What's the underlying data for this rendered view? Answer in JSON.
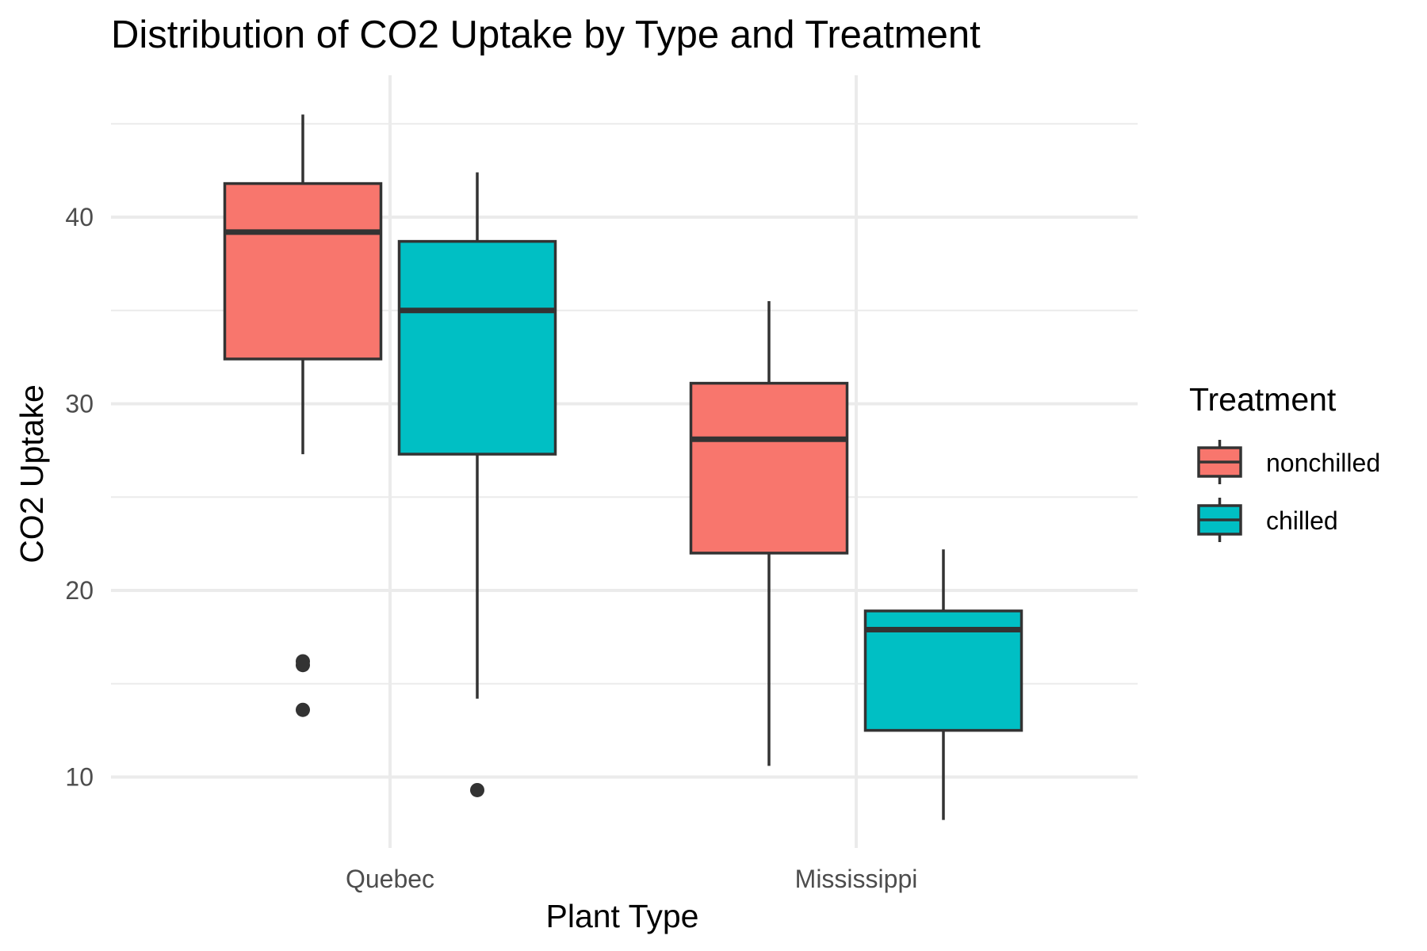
{
  "chart_data": {
    "type": "box",
    "title": "Distribution of CO2 Uptake by Type and Treatment",
    "xlabel": "Plant Type",
    "ylabel": "CO2 Uptake",
    "categories": [
      "Quebec",
      "Mississippi"
    ],
    "ylim": [
      6.2,
      47.6
    ],
    "yticks": [
      10,
      20,
      30,
      40
    ],
    "y_tick_labels": [
      "10",
      "20",
      "30",
      "40"
    ],
    "grid": true,
    "legend": {
      "title": "Treatment",
      "placement": "right",
      "entries": [
        "nonchilled",
        "chilled"
      ]
    },
    "series": [
      {
        "name": "nonchilled",
        "color": "#F8766D",
        "boxes": [
          {
            "category": "Quebec",
            "whisker_low": 27.3,
            "q1": 32.4,
            "median": 39.2,
            "q3": 41.8,
            "whisker_high": 45.5,
            "outliers": [
              13.6,
              16.0,
              16.2
            ]
          },
          {
            "category": "Mississippi",
            "whisker_low": 10.6,
            "q1": 22.0,
            "median": 28.1,
            "q3": 31.1,
            "whisker_high": 35.5,
            "outliers": []
          }
        ]
      },
      {
        "name": "chilled",
        "color": "#00BFC4",
        "boxes": [
          {
            "category": "Quebec",
            "whisker_low": 14.2,
            "q1": 27.3,
            "median": 35.0,
            "q3": 38.7,
            "whisker_high": 42.4,
            "outliers": [
              9.3
            ]
          },
          {
            "category": "Mississippi",
            "whisker_low": 7.7,
            "q1": 12.5,
            "median": 17.9,
            "q3": 18.9,
            "whisker_high": 22.2,
            "outliers": []
          }
        ]
      }
    ]
  }
}
